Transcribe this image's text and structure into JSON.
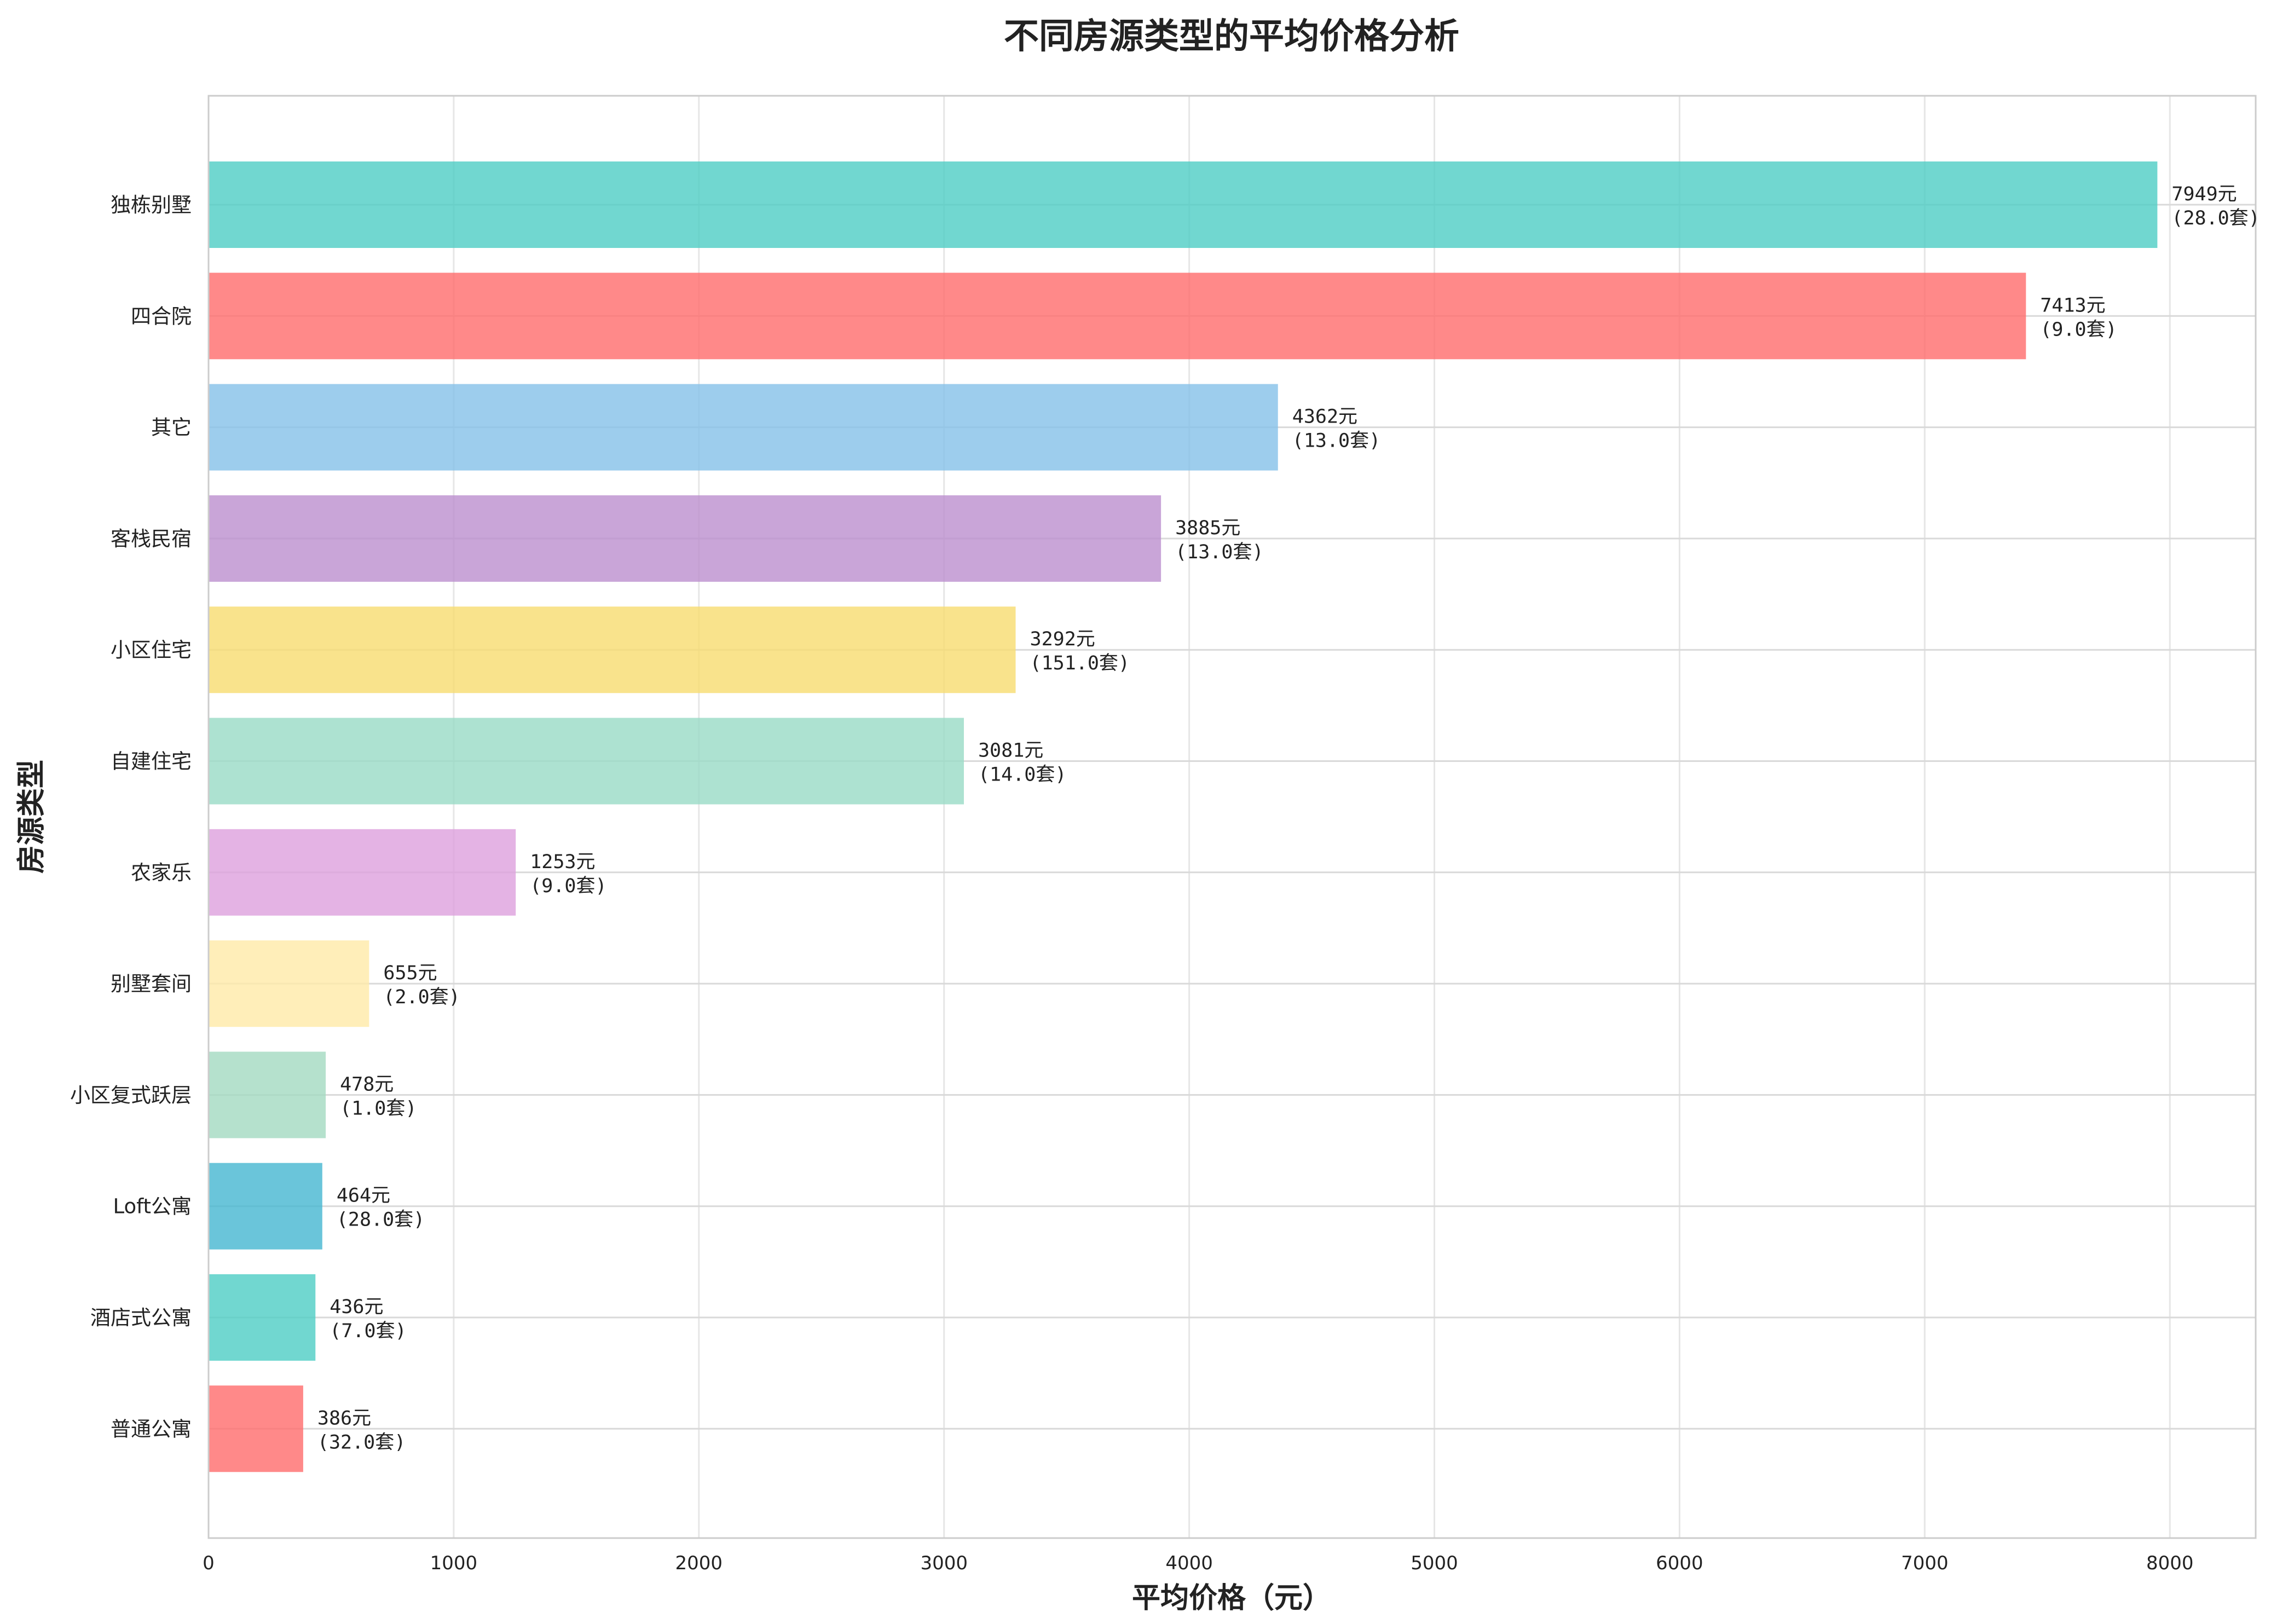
{
  "chart_data": {
    "type": "bar",
    "orientation": "horizontal",
    "title": "不同房源类型的平均价格分析",
    "xlabel": "平均价格（元）",
    "ylabel": "房源类型",
    "xlim": [
      0,
      8350
    ],
    "xticks": [
      0,
      1000,
      2000,
      3000,
      4000,
      5000,
      6000,
      7000,
      8000
    ],
    "grid": true,
    "categories": [
      "独栋别墅",
      "四合院",
      "其它",
      "客栈民宿",
      "小区住宅",
      "自建住宅",
      "农家乐",
      "别墅套间",
      "小区复式跃层",
      "Loft公寓",
      "酒店式公寓",
      "普通公寓"
    ],
    "values": [
      7949,
      7413,
      4362,
      3885,
      3292,
      3081,
      1253,
      655,
      478,
      464,
      436,
      386
    ],
    "price_labels": [
      "7949元",
      "7413元",
      "4362元",
      "3885元",
      "3292元",
      "3081元",
      "1253元",
      "655元",
      "478元",
      "464元",
      "436元",
      "386元"
    ],
    "count_labels": [
      "(28.0套)",
      "(9.0套)",
      "(13.0套)",
      "(13.0套)",
      "(151.0套)",
      "(14.0套)",
      "(9.0套)",
      "(2.0套)",
      "(1.0套)",
      "(28.0套)",
      "(7.0套)",
      "(32.0套)"
    ],
    "colors": [
      "#4ECDC4",
      "#FF6B6B",
      "#85C1E9",
      "#BB8FCE",
      "#F7DC6F",
      "#98DBC6",
      "#DDA0DD",
      "#FFEAA7",
      "#A3D9C0",
      "#45B7D1",
      "#4ECDC4",
      "#FF6B6B"
    ]
  }
}
